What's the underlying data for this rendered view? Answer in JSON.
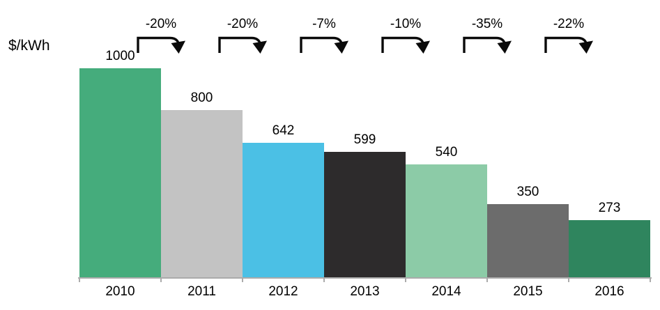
{
  "chart_data": {
    "type": "bar",
    "title": "$/kWh",
    "ylabel": "$/kWh",
    "xlabel": "",
    "categories": [
      "2010",
      "2011",
      "2012",
      "2013",
      "2014",
      "2015",
      "2016"
    ],
    "values": [
      1000,
      800,
      642,
      599,
      540,
      350,
      273
    ],
    "value_labels": [
      "1000",
      "800",
      "642",
      "599",
      "540",
      "350",
      "273"
    ],
    "bar_colors": [
      "#45ac7c",
      "#c3c3c3",
      "#4bc0e5",
      "#2d2b2c",
      "#8ccba7",
      "#6c6c6c",
      "#2f855e"
    ],
    "annotations": [
      {
        "label": "-20%",
        "from": "2010",
        "to": "2011"
      },
      {
        "label": "-20%",
        "from": "2011",
        "to": "2012"
      },
      {
        "label": "-7%",
        "from": "2012",
        "to": "2013"
      },
      {
        "label": "-10%",
        "from": "2013",
        "to": "2014"
      },
      {
        "label": "-35%",
        "from": "2014",
        "to": "2015"
      },
      {
        "label": "-22%",
        "from": "2015",
        "to": "2016"
      }
    ],
    "ylim": [
      0,
      1000
    ],
    "grid": false,
    "legend": "none",
    "axis_color": "#ababab",
    "text_color": "#000000"
  }
}
